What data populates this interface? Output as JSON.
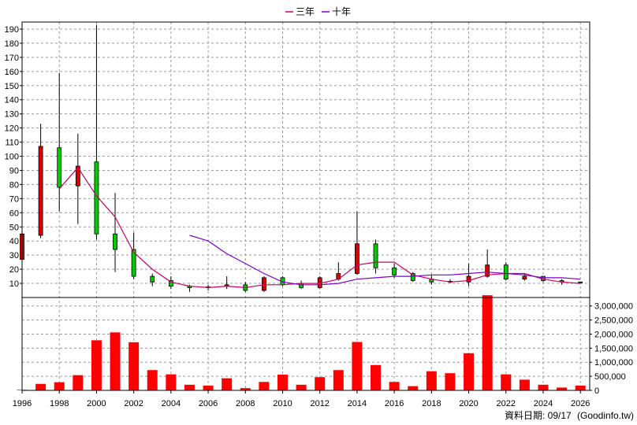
{
  "chart_data": {
    "type": "candlestick",
    "legend": {
      "placement": "top-center",
      "items": [
        {
          "label": "三年",
          "color": "#cc0066"
        },
        {
          "label": "十年",
          "color": "#7f00cc"
        }
      ]
    },
    "price_axis": {
      "ylim": [
        0,
        195
      ],
      "ticks": [
        10,
        20,
        30,
        40,
        50,
        60,
        70,
        80,
        90,
        100,
        110,
        120,
        130,
        140,
        150,
        160,
        170,
        180,
        190
      ]
    },
    "volume_axis": {
      "ylim": [
        0,
        3300000
      ],
      "ticks": [
        0,
        500000,
        1000000,
        1500000,
        2000000,
        2500000,
        3000000
      ],
      "tick_labels": [
        "0",
        "500,000",
        "1,000,000",
        "1,500,000",
        "2,000,000",
        "2,500,000",
        "3,000,000"
      ]
    },
    "x_axis": {
      "range": [
        1996,
        2026.5
      ],
      "ticks": [
        "1996",
        "1998",
        "2000",
        "2002",
        "2004",
        "2006",
        "2008",
        "2010",
        "2012",
        "2014",
        "2016",
        "2018",
        "2020",
        "2022",
        "2024",
        "2026"
      ]
    },
    "grid": true,
    "colors": {
      "up": "#dd0000",
      "down": "#00cc00",
      "volume": "#ff0000",
      "ma3": "#cc0066",
      "ma10": "#7f00cc"
    },
    "candles": [
      {
        "year": 1996,
        "open": 27,
        "close": 45,
        "high": 45,
        "low": 27
      },
      {
        "year": 1997,
        "open": 44,
        "close": 107,
        "high": 123,
        "low": 42
      },
      {
        "year": 1998,
        "open": 106,
        "close": 78,
        "high": 159,
        "low": 61
      },
      {
        "year": 1999,
        "open": 79,
        "close": 93,
        "high": 116,
        "low": 52
      },
      {
        "year": 2000,
        "open": 96,
        "close": 45,
        "high": 193,
        "low": 41
      },
      {
        "year": 2001,
        "open": 45,
        "close": 34,
        "high": 74,
        "low": 18
      },
      {
        "year": 2002,
        "open": 34,
        "close": 15,
        "high": 46,
        "low": 13
      },
      {
        "year": 2003,
        "open": 15,
        "close": 11,
        "high": 17,
        "low": 8
      },
      {
        "year": 2004,
        "open": 12,
        "close": 8,
        "high": 15,
        "low": 6
      },
      {
        "year": 2005,
        "open": 8,
        "close": 7,
        "high": 9,
        "low": 4
      },
      {
        "year": 2006,
        "open": 7,
        "close": 7.5,
        "high": 9,
        "low": 5
      },
      {
        "year": 2007,
        "open": 8,
        "close": 9,
        "high": 15,
        "low": 6
      },
      {
        "year": 2008,
        "open": 9,
        "close": 5,
        "high": 11,
        "low": 4
      },
      {
        "year": 2009,
        "open": 5,
        "close": 14,
        "high": 15,
        "low": 4
      },
      {
        "year": 2010,
        "open": 14,
        "close": 9,
        "high": 15,
        "low": 8
      },
      {
        "year": 2011,
        "open": 10,
        "close": 7,
        "high": 12,
        "low": 6
      },
      {
        "year": 2012,
        "open": 7,
        "close": 14,
        "high": 15,
        "low": 6
      },
      {
        "year": 2013,
        "open": 13,
        "close": 17,
        "high": 25,
        "low": 12
      },
      {
        "year": 2014,
        "open": 17,
        "close": 38,
        "high": 61,
        "low": 16
      },
      {
        "year": 2015,
        "open": 38,
        "close": 21,
        "high": 41,
        "low": 17
      },
      {
        "year": 2016,
        "open": 21,
        "close": 16,
        "high": 24,
        "low": 14
      },
      {
        "year": 2017,
        "open": 17,
        "close": 12,
        "high": 18,
        "low": 11
      },
      {
        "year": 2018,
        "open": 13,
        "close": 11,
        "high": 16,
        "low": 9
      },
      {
        "year": 2019,
        "open": 11,
        "close": 11.5,
        "high": 13,
        "low": 10
      },
      {
        "year": 2020,
        "open": 11,
        "close": 15,
        "high": 24,
        "low": 8
      },
      {
        "year": 2021,
        "open": 15,
        "close": 23,
        "high": 34,
        "low": 14
      },
      {
        "year": 2022,
        "open": 23,
        "close": 13,
        "high": 25,
        "low": 12
      },
      {
        "year": 2023,
        "open": 13,
        "close": 15,
        "high": 17,
        "low": 12
      },
      {
        "year": 2024,
        "open": 15,
        "close": 12,
        "high": 15,
        "low": 11
      },
      {
        "year": 2025,
        "open": 12,
        "close": 11,
        "high": 13,
        "low": 9
      },
      {
        "year": 2026,
        "open": 11,
        "close": 10.5,
        "high": 11,
        "low": 10
      }
    ],
    "volume": [
      {
        "year": 1996,
        "value": 20000
      },
      {
        "year": 1997,
        "value": 230000
      },
      {
        "year": 1998,
        "value": 290000
      },
      {
        "year": 1999,
        "value": 540000
      },
      {
        "year": 2000,
        "value": 1780000
      },
      {
        "year": 2001,
        "value": 2060000
      },
      {
        "year": 2002,
        "value": 1710000
      },
      {
        "year": 2003,
        "value": 720000
      },
      {
        "year": 2004,
        "value": 570000
      },
      {
        "year": 2005,
        "value": 200000
      },
      {
        "year": 2006,
        "value": 170000
      },
      {
        "year": 2007,
        "value": 430000
      },
      {
        "year": 2008,
        "value": 80000
      },
      {
        "year": 2009,
        "value": 300000
      },
      {
        "year": 2010,
        "value": 560000
      },
      {
        "year": 2011,
        "value": 200000
      },
      {
        "year": 2012,
        "value": 470000
      },
      {
        "year": 2013,
        "value": 720000
      },
      {
        "year": 2014,
        "value": 1720000
      },
      {
        "year": 2015,
        "value": 900000
      },
      {
        "year": 2016,
        "value": 300000
      },
      {
        "year": 2017,
        "value": 150000
      },
      {
        "year": 2018,
        "value": 680000
      },
      {
        "year": 2019,
        "value": 610000
      },
      {
        "year": 2020,
        "value": 1320000
      },
      {
        "year": 2021,
        "value": 3380000
      },
      {
        "year": 2022,
        "value": 570000
      },
      {
        "year": 2023,
        "value": 380000
      },
      {
        "year": 2024,
        "value": 200000
      },
      {
        "year": 2025,
        "value": 100000
      },
      {
        "year": 2026,
        "value": 170000
      }
    ],
    "ma3": [
      {
        "year": 1998,
        "value": 77
      },
      {
        "year": 1999,
        "value": 92
      },
      {
        "year": 2000,
        "value": 72
      },
      {
        "year": 2001,
        "value": 57
      },
      {
        "year": 2002,
        "value": 32
      },
      {
        "year": 2003,
        "value": 20
      },
      {
        "year": 2004,
        "value": 11
      },
      {
        "year": 2005,
        "value": 8
      },
      {
        "year": 2006,
        "value": 7
      },
      {
        "year": 2007,
        "value": 8
      },
      {
        "year": 2008,
        "value": 7
      },
      {
        "year": 2009,
        "value": 9
      },
      {
        "year": 2010,
        "value": 9
      },
      {
        "year": 2011,
        "value": 10
      },
      {
        "year": 2012,
        "value": 10
      },
      {
        "year": 2013,
        "value": 13
      },
      {
        "year": 2014,
        "value": 23
      },
      {
        "year": 2015,
        "value": 25
      },
      {
        "year": 2016,
        "value": 25
      },
      {
        "year": 2017,
        "value": 16
      },
      {
        "year": 2018,
        "value": 13
      },
      {
        "year": 2019,
        "value": 11
      },
      {
        "year": 2020,
        "value": 12
      },
      {
        "year": 2021,
        "value": 16
      },
      {
        "year": 2022,
        "value": 17
      },
      {
        "year": 2023,
        "value": 17
      },
      {
        "year": 2024,
        "value": 13
      },
      {
        "year": 2025,
        "value": 11
      },
      {
        "year": 2026,
        "value": 10
      }
    ],
    "ma10": [
      {
        "year": 2005,
        "value": 44
      },
      {
        "year": 2006,
        "value": 40
      },
      {
        "year": 2007,
        "value": 31
      },
      {
        "year": 2008,
        "value": 24
      },
      {
        "year": 2009,
        "value": 17
      },
      {
        "year": 2010,
        "value": 11
      },
      {
        "year": 2011,
        "value": 9
      },
      {
        "year": 2012,
        "value": 9
      },
      {
        "year": 2013,
        "value": 10
      },
      {
        "year": 2014,
        "value": 13
      },
      {
        "year": 2015,
        "value": 14
      },
      {
        "year": 2016,
        "value": 15
      },
      {
        "year": 2017,
        "value": 15
      },
      {
        "year": 2018,
        "value": 16
      },
      {
        "year": 2019,
        "value": 16
      },
      {
        "year": 2020,
        "value": 17
      },
      {
        "year": 2021,
        "value": 18
      },
      {
        "year": 2022,
        "value": 17
      },
      {
        "year": 2023,
        "value": 16
      },
      {
        "year": 2024,
        "value": 14
      },
      {
        "year": 2025,
        "value": 14
      },
      {
        "year": 2026,
        "value": 13
      }
    ]
  },
  "footer": {
    "date_label": "資料日期: 09/17",
    "source": "(Goodinfo.tw)"
  }
}
